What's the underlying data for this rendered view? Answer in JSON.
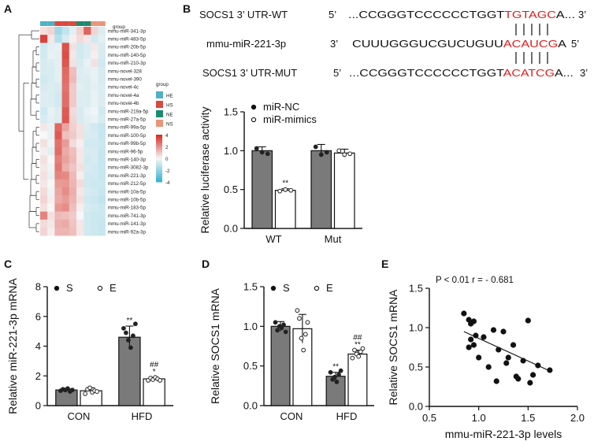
{
  "panels": {
    "A": "A",
    "B": "B",
    "C": "C",
    "D": "D",
    "E": "E"
  },
  "panel_A": {
    "legend_group_label": "group",
    "group_legend_title": "group",
    "groups": [
      {
        "name": "HE",
        "color": "#4fb0c6"
      },
      {
        "name": "HS",
        "color": "#d94a3d"
      },
      {
        "name": "NE",
        "color": "#1c8a6e"
      },
      {
        "name": "NS",
        "color": "#e9967a"
      }
    ],
    "column_groups": [
      "HE",
      "HE",
      "HS",
      "HS",
      "HS",
      "NE",
      "NE",
      "NS",
      "NS"
    ],
    "color_scale": {
      "ticks": [
        "4",
        "2",
        "0",
        "-2",
        "-4"
      ],
      "high": "#d73027",
      "mid": "#f7f7f7",
      "low": "#3ab3d6"
    },
    "rows": [
      "mmu-miR-341-3p",
      "mmu-miR-483-5p",
      "mmu-miR-20b-5p",
      "mmu-miR-140-5p",
      "mmu-miR-210-3p",
      "mmu-novel-328",
      "mmu-novel-390",
      "mmu-novel-4c",
      "mmu-novel-4a",
      "mmu-novel-4b",
      "mmu-miR-219a-5p",
      "mmu-miR-27a-5p",
      "mmu-miR-99a-5p",
      "mmu-miR-100-5p",
      "mmu-miR-99b-5p",
      "mmu-miR-96-5p",
      "mmu-miR-140-3p",
      "mmu-miR-3082-3p",
      "mmu-miR-221-3p",
      "mmu-miR-212-5p",
      "mmu-miR-10a-5p",
      "mmu-miR-10b-5p",
      "mmu-miR-183-5p",
      "mmu-miR-741-3p",
      "mmu-miR-141-3p",
      "mmu-miR-92a-3p"
    ],
    "matrix": [
      [
        0.3,
        0.5,
        -1.6,
        -0.9,
        -0.3,
        0.6,
        2.8,
        0.5,
        -0.4
      ],
      [
        3.6,
        0.2,
        -1.2,
        -0.5,
        0.1,
        0.4,
        0.2,
        -0.6,
        -0.3
      ],
      [
        -0.6,
        -0.3,
        -0.2,
        3.2,
        0.3,
        -0.6,
        -0.4,
        0.2,
        -0.5
      ],
      [
        -0.6,
        -0.2,
        -0.3,
        3.3,
        0.2,
        -0.6,
        -0.4,
        0.1,
        -0.5
      ],
      [
        -0.5,
        -0.4,
        -0.3,
        3.1,
        0.3,
        -0.5,
        -0.2,
        0.3,
        -0.6
      ],
      [
        -0.5,
        -0.5,
        -0.3,
        2.7,
        0.9,
        -0.4,
        -0.3,
        -0.2,
        -0.5
      ],
      [
        -0.6,
        -0.5,
        -0.3,
        2.6,
        1.0,
        -0.4,
        -0.4,
        -0.2,
        -0.5
      ],
      [
        -0.5,
        -0.4,
        -0.5,
        2.5,
        0.7,
        -0.3,
        -0.4,
        -0.3,
        -0.4
      ],
      [
        -0.4,
        -0.4,
        -0.6,
        2.6,
        0.7,
        -0.4,
        -0.4,
        -0.2,
        -0.4
      ],
      [
        -0.4,
        -0.4,
        -0.6,
        2.6,
        0.7,
        -0.4,
        -0.4,
        -0.2,
        -0.4
      ],
      [
        -0.6,
        -0.2,
        -0.4,
        3.0,
        0.4,
        -0.5,
        -0.2,
        -0.1,
        -0.6
      ],
      [
        -0.5,
        -0.3,
        -0.4,
        3.1,
        0.5,
        -0.5,
        -0.3,
        -0.2,
        -0.5
      ],
      [
        0.2,
        -0.2,
        2.7,
        1.4,
        0.6,
        0.3,
        -0.4,
        -0.6,
        -0.8
      ],
      [
        0.0,
        -0.2,
        3.0,
        0.9,
        0.7,
        0.3,
        -0.5,
        -0.5,
        -0.8
      ],
      [
        0.3,
        -0.1,
        2.5,
        1.6,
        0.4,
        0.1,
        -0.6,
        -0.6,
        -0.7
      ],
      [
        0.1,
        -0.3,
        2.6,
        1.3,
        0.9,
        0.2,
        -0.5,
        -0.5,
        -0.8
      ],
      [
        0.3,
        0.0,
        2.2,
        1.5,
        1.0,
        0.2,
        -0.6,
        -0.5,
        -0.8
      ],
      [
        0.2,
        -0.1,
        2.4,
        1.2,
        0.8,
        0.3,
        -0.5,
        -0.6,
        -0.8
      ],
      [
        0.3,
        -0.2,
        2.1,
        2.0,
        1.0,
        0.1,
        -0.6,
        -0.6,
        -0.8
      ],
      [
        0.2,
        0.0,
        1.6,
        1.7,
        1.1,
        0.4,
        -0.6,
        -0.7,
        -0.7
      ],
      [
        0.4,
        -0.1,
        1.4,
        1.9,
        1.2,
        0.2,
        -0.5,
        -0.6,
        -0.8
      ],
      [
        0.5,
        0.1,
        1.3,
        1.6,
        1.1,
        0.3,
        -0.6,
        -0.7,
        -0.9
      ],
      [
        0.3,
        0.0,
        1.7,
        1.9,
        0.9,
        0.1,
        -0.5,
        -0.6,
        -0.7
      ],
      [
        2.1,
        0.3,
        1.0,
        0.9,
        0.7,
        0.0,
        -0.6,
        -0.7,
        -0.7
      ],
      [
        0.4,
        0.2,
        1.2,
        1.3,
        0.8,
        0.2,
        -0.6,
        -0.7,
        -0.8
      ],
      [
        0.5,
        0.1,
        1.1,
        1.1,
        0.9,
        0.2,
        -0.6,
        -0.7,
        -0.8
      ]
    ]
  },
  "panel_B": {
    "seq_wt_label": "SOCS1 3’ UTR-WT",
    "seq_wt_5": "5’",
    "seq_wt_black": "...CCGGGTCCCCCCTGGT",
    "seq_wt_red": "TGTAGC",
    "seq_wt_tail": "A...",
    "seq_wt_3": "3’",
    "mir_label": "mmu-miR-221-3p",
    "mir_3": "3’",
    "mir_black": "CUUUGGGUCGUCUGUU",
    "mir_red": "ACAUCG",
    "mir_tail": "A",
    "mir_5": "5’",
    "seq_mut_label": "SOCS1 3’ UTR-MUT",
    "seq_mut_5": "5’",
    "seq_mut_black": "...CCGGGTCCCCCCTGGT",
    "seq_mut_red": "ACATCG",
    "seq_mut_tail": "A...",
    "seq_mut_3": "3’"
  },
  "chart_data": [
    {
      "panel": "B",
      "type": "bar",
      "categories": [
        "WT",
        "Mut"
      ],
      "series": [
        {
          "name": "miR-NC",
          "fill": "#7a7a7a",
          "values": [
            1.0,
            1.0
          ],
          "errors": [
            0.05,
            0.08
          ],
          "points": [
            [
              1.03,
              0.98,
              0.96
            ],
            [
              1.05,
              0.95,
              0.98
            ]
          ]
        },
        {
          "name": "miR-mimics",
          "fill": "#ffffff",
          "values": [
            0.49,
            0.97
          ],
          "errors": [
            0.02,
            0.05
          ],
          "points": [
            [
              0.48,
              0.5,
              0.49
            ],
            [
              1.0,
              0.95,
              0.96
            ]
          ]
        }
      ],
      "annotations": [
        {
          "category": "WT",
          "series": "miR-mimics",
          "text": "**"
        }
      ],
      "ylabel": "Relative luciferase activity",
      "ylim": [
        0,
        1.5
      ],
      "yticks": [
        "0.0",
        "0.5",
        "1.0",
        "1.5"
      ],
      "legend": [
        "miR-NC",
        "miR-mimics"
      ]
    },
    {
      "panel": "C",
      "type": "bar",
      "categories": [
        "CON",
        "HFD"
      ],
      "series": [
        {
          "name": "S",
          "fill": "#7a7a7a",
          "values": [
            1.05,
            4.6
          ],
          "errors": [
            0.1,
            0.75
          ],
          "points": [
            [
              1.0,
              1.1,
              1.05,
              1.15,
              0.95,
              1.05
            ],
            [
              5.2,
              4.9,
              4.4,
              3.9,
              4.7,
              5.5
            ]
          ]
        },
        {
          "name": "E",
          "fill": "#ffffff",
          "values": [
            1.0,
            1.8
          ],
          "errors": [
            0.2,
            0.1
          ],
          "points": [
            [
              0.8,
              1.1,
              1.2,
              0.9,
              1.0,
              0.95
            ],
            [
              1.7,
              1.85,
              1.75,
              1.9,
              1.8,
              1.7
            ]
          ]
        }
      ],
      "annotations": [
        {
          "category": "HFD",
          "series": "S",
          "text": "**"
        },
        {
          "category": "HFD",
          "series": "E",
          "text": "*"
        },
        {
          "category": "HFD",
          "series": "E",
          "text": "##"
        }
      ],
      "ylabel": "Relative miR-221-3p mRNA",
      "ylim": [
        0,
        8
      ],
      "yticks": [
        "0",
        "2",
        "4",
        "6",
        "8"
      ],
      "legend": [
        "S",
        "E"
      ]
    },
    {
      "panel": "D",
      "type": "bar",
      "categories": [
        "CON",
        "HFD"
      ],
      "series": [
        {
          "name": "S",
          "fill": "#7a7a7a",
          "values": [
            1.0,
            0.37
          ],
          "errors": [
            0.06,
            0.05
          ],
          "points": [
            [
              1.05,
              0.95,
              1.0,
              0.98,
              1.02,
              0.93
            ],
            [
              0.42,
              0.33,
              0.36,
              0.3,
              0.39,
              0.44
            ]
          ]
        },
        {
          "name": "E",
          "fill": "#ffffff",
          "values": [
            0.97,
            0.65
          ],
          "errors": [
            0.18,
            0.05
          ],
          "points": [
            [
              1.2,
              1.1,
              0.85,
              0.7,
              0.9,
              1.05
            ],
            [
              0.6,
              0.7,
              0.65,
              0.62,
              0.68,
              0.72
            ]
          ]
        }
      ],
      "annotations": [
        {
          "category": "HFD",
          "series": "S",
          "text": "**"
        },
        {
          "category": "HFD",
          "series": "E",
          "text": "**"
        },
        {
          "category": "HFD",
          "series": "E",
          "text": "##"
        }
      ],
      "ylabel": "Relative SOCS1 mRNA",
      "ylim": [
        0,
        1.5
      ],
      "yticks": [
        "0.0",
        "0.5",
        "1.0",
        "1.5"
      ],
      "legend": [
        "S",
        "E"
      ]
    },
    {
      "panel": "E",
      "type": "scatter",
      "x": [
        0.85,
        0.9,
        0.92,
        0.95,
        0.97,
        0.9,
        0.95,
        1.0,
        1.05,
        1.1,
        1.15,
        1.2,
        1.25,
        1.3,
        1.35,
        1.4,
        1.45,
        1.5,
        1.55,
        1.6,
        1.72,
        0.92,
        1.18,
        1.28,
        1.52,
        1.38
      ],
      "y": [
        1.18,
        1.1,
        1.05,
        1.08,
        0.9,
        0.75,
        0.78,
        0.62,
        0.88,
        0.5,
        0.97,
        0.72,
        0.95,
        0.62,
        0.78,
        0.35,
        0.58,
        1.09,
        0.4,
        0.52,
        0.46,
        0.85,
        0.32,
        0.55,
        0.3,
        0.38
      ],
      "fit": {
        "x": [
          0.85,
          1.72
        ],
        "y": [
          0.95,
          0.45
        ]
      },
      "annotation": "P < 0.01 r = - 0.681",
      "xlabel": "mmu-miR-221-3p levels",
      "ylabel": "Relative SOCS1 mRNA",
      "xlim": [
        0.5,
        2.0
      ],
      "ylim": [
        0.0,
        1.5
      ],
      "xticks": [
        "0.5",
        "1.0",
        "1.5",
        "2.0"
      ],
      "yticks": [
        "0.0",
        "0.5",
        "1.0",
        "1.5"
      ]
    }
  ]
}
